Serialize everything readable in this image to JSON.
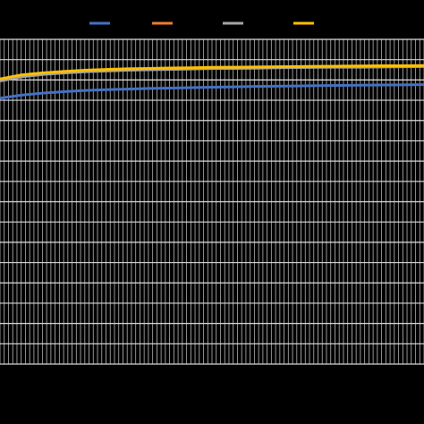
{
  "chart_data": {
    "type": "line",
    "x": [
      0,
      5,
      10,
      15,
      20,
      25,
      30,
      35,
      40,
      45,
      50,
      55,
      60,
      65,
      70,
      75,
      80,
      85,
      90,
      95,
      100
    ],
    "series": [
      {
        "color": "#4472c4",
        "values": [
          13.1,
          13.25,
          13.35,
          13.42,
          13.48,
          13.52,
          13.55,
          13.58,
          13.6,
          13.62,
          13.64,
          13.66,
          13.68,
          13.69,
          13.7,
          13.72,
          13.73,
          13.74,
          13.75,
          13.76,
          13.77
        ]
      },
      {
        "color": "#ed7d31",
        "values": [
          14.0,
          14.2,
          14.3,
          14.36,
          14.42,
          14.46,
          14.5,
          14.52,
          14.54,
          14.56,
          14.58,
          14.6,
          14.6,
          14.62,
          14.63,
          14.64,
          14.65,
          14.66,
          14.66,
          14.67,
          14.68
        ]
      },
      {
        "color": "#a5a5a5",
        "values": [
          13.95,
          14.15,
          14.27,
          14.34,
          14.4,
          14.44,
          14.48,
          14.5,
          14.52,
          14.54,
          14.56,
          14.57,
          14.58,
          14.6,
          14.61,
          14.62,
          14.63,
          14.63,
          14.64,
          14.65,
          14.66
        ]
      },
      {
        "color": "#ffc000",
        "values": [
          14.05,
          14.25,
          14.35,
          14.42,
          14.48,
          14.52,
          14.55,
          14.57,
          14.59,
          14.6,
          14.62,
          14.63,
          14.64,
          14.65,
          14.66,
          14.67,
          14.68,
          14.69,
          14.7,
          14.7,
          14.71
        ]
      }
    ],
    "xlim": [
      0,
      100
    ],
    "xticks": [
      0,
      1,
      2,
      3,
      4,
      5,
      6,
      7,
      8,
      9,
      10,
      11,
      12,
      13,
      14,
      15,
      16,
      17,
      18,
      19,
      20,
      21,
      22,
      23,
      24,
      25,
      26,
      27,
      28,
      29,
      30,
      31,
      32,
      33,
      34,
      35,
      36,
      37,
      38,
      39,
      40,
      41,
      42,
      43,
      44,
      45,
      46,
      47,
      48,
      49,
      50,
      51,
      52,
      53,
      54,
      55,
      56,
      57,
      58,
      59,
      60,
      61,
      62,
      63,
      64,
      65,
      66,
      67,
      68,
      69,
      70,
      71,
      72,
      73,
      74,
      75,
      76,
      77,
      78,
      79,
      80,
      81,
      82,
      83,
      84,
      85,
      86,
      87,
      88,
      89,
      90,
      91,
      92,
      93,
      94,
      95,
      96,
      97,
      98,
      99,
      100
    ],
    "ylim": [
      0,
      16
    ],
    "yticks": [
      0,
      1,
      2,
      3,
      4,
      5,
      6,
      7,
      8,
      9,
      10,
      11,
      12,
      13,
      14,
      15,
      16
    ],
    "grid": true
  }
}
